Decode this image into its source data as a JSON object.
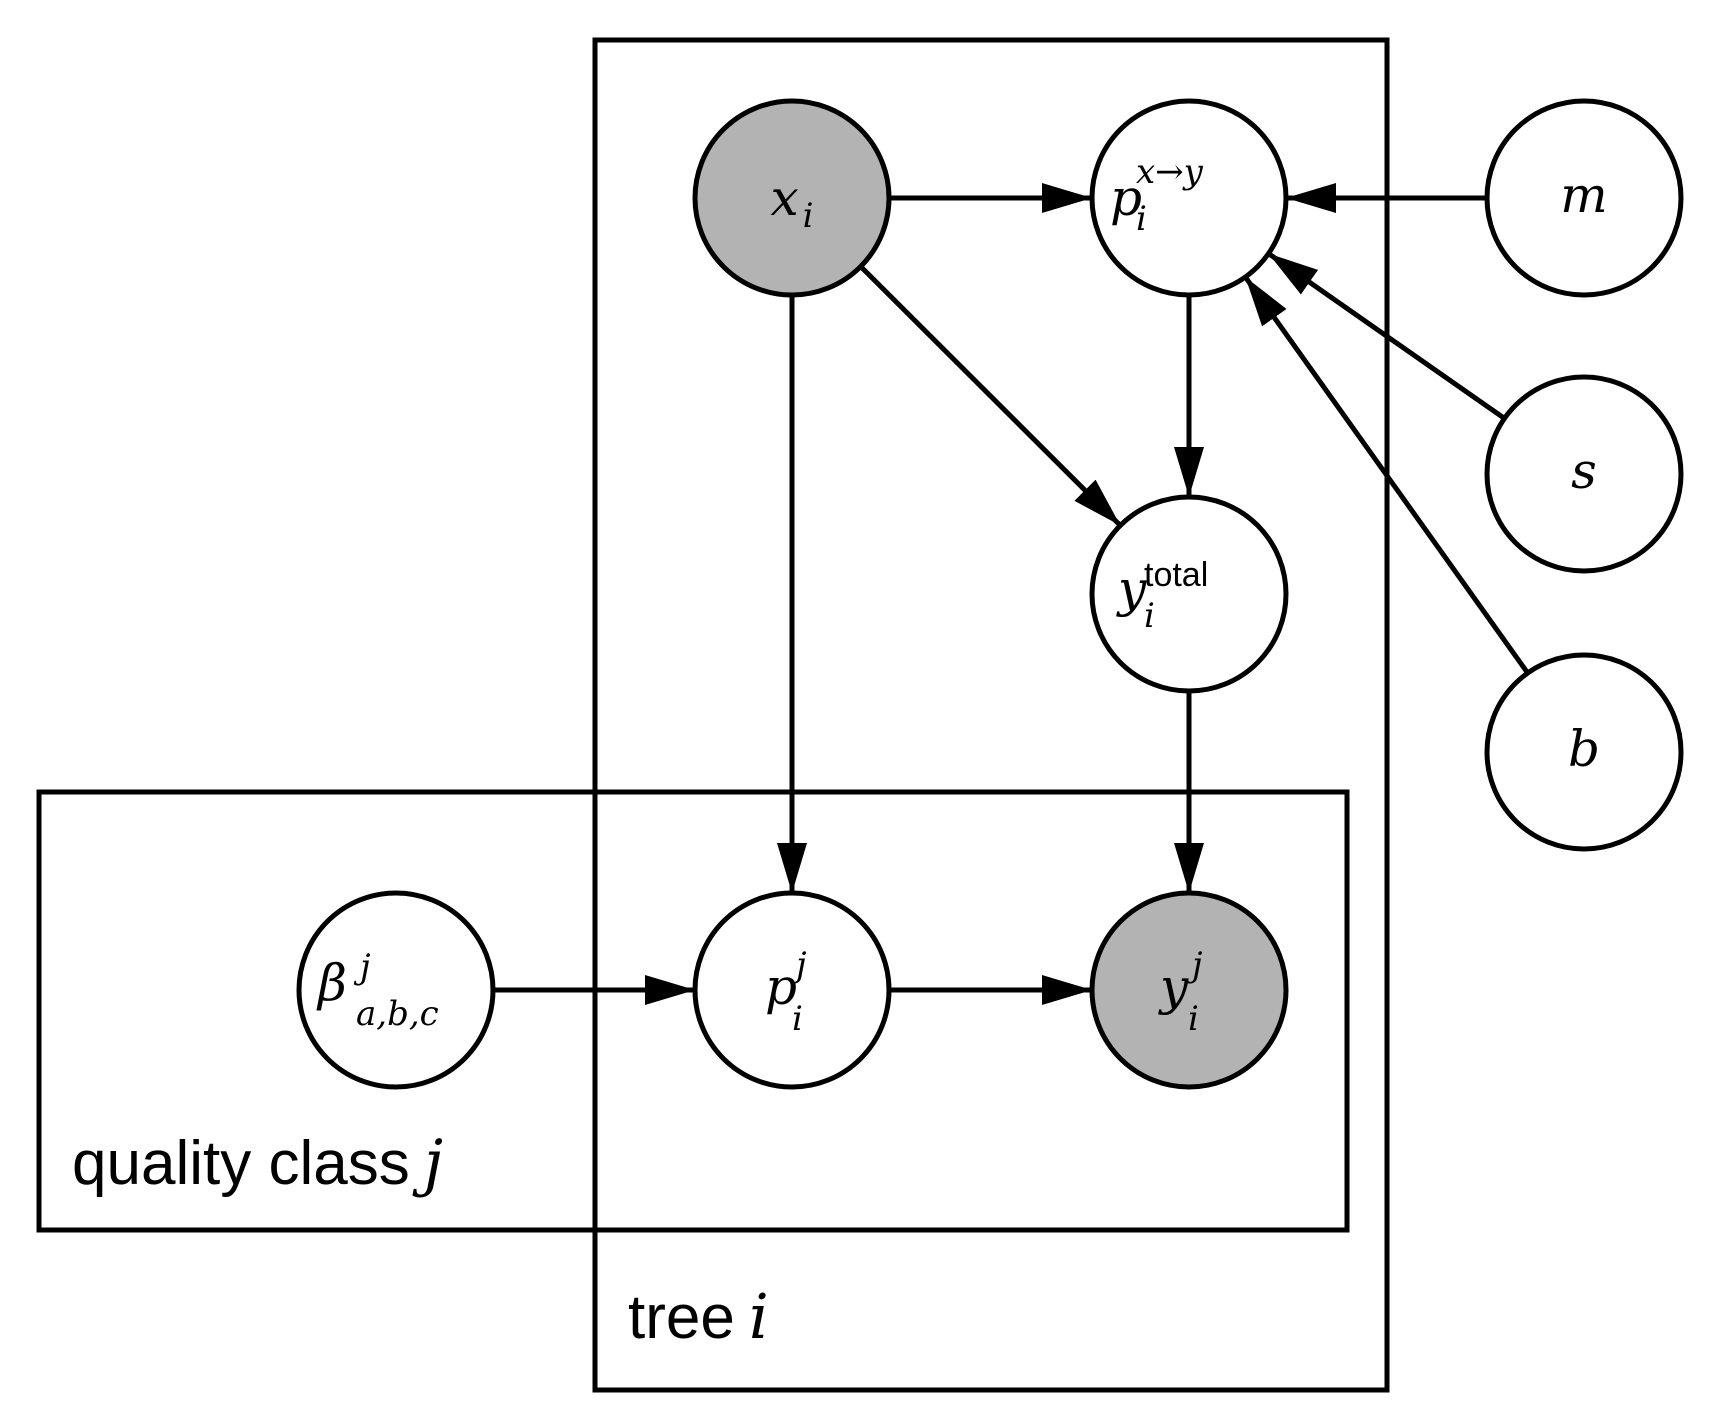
{
  "colors": {
    "observed_fill": "#b3b3b3",
    "latent_fill": "#ffffff",
    "stroke": "#000000"
  },
  "plates": {
    "tree": {
      "label": "tree",
      "index": "i"
    },
    "quality": {
      "label": "quality class",
      "index": "j"
    }
  },
  "nodes": {
    "x": {
      "base": "x",
      "sub": "i",
      "observed": true
    },
    "pxy": {
      "base": "p",
      "sub": "i",
      "sup": "x→y",
      "observed": false
    },
    "m": {
      "base": "m",
      "observed": false
    },
    "s": {
      "base": "s",
      "observed": false
    },
    "b": {
      "base": "b",
      "observed": false
    },
    "ytotal": {
      "base": "y",
      "sub": "i",
      "sup": "total",
      "observed": false
    },
    "beta": {
      "base": "β",
      "sub": "a,b,c",
      "sup": "j",
      "observed": false
    },
    "pij": {
      "base": "p",
      "sub": "i",
      "sup": "j",
      "observed": false
    },
    "yij": {
      "base": "y",
      "sub": "i",
      "sup": "j",
      "observed": true
    }
  },
  "edges": [
    {
      "from": "x",
      "to": "pxy"
    },
    {
      "from": "m",
      "to": "pxy"
    },
    {
      "from": "s",
      "to": "pxy"
    },
    {
      "from": "b",
      "to": "pxy"
    },
    {
      "from": "pxy",
      "to": "ytotal"
    },
    {
      "from": "x",
      "to": "ytotal"
    },
    {
      "from": "x",
      "to": "pij"
    },
    {
      "from": "ytotal",
      "to": "yij"
    },
    {
      "from": "beta",
      "to": "pij"
    },
    {
      "from": "pij",
      "to": "yij"
    }
  ]
}
